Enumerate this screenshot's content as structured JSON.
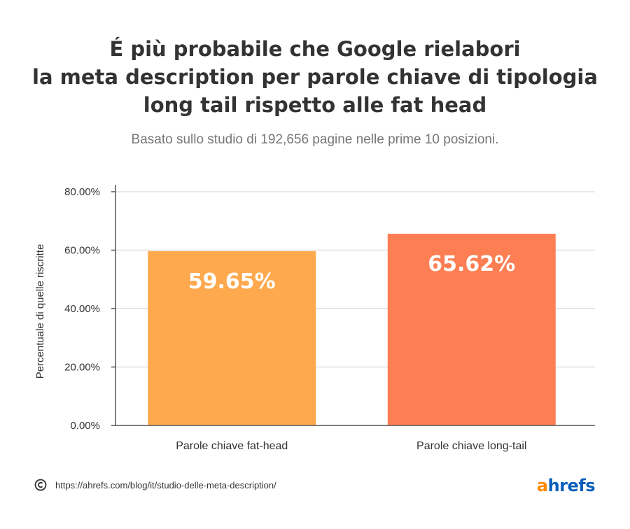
{
  "header": {
    "title_lines": [
      "É più probabile che Google rielabori",
      "la meta description per parole chiave di tipologia",
      "long tail rispetto alle fat head"
    ],
    "subtitle": "Basato sullo studio di 192,656 pagine nelle prime 10 posizioni."
  },
  "chart_data": {
    "type": "bar",
    "title": "É più probabile che Google rielabori la meta description per parole chiave di tipologia long tail rispetto alle fat head",
    "subtitle": "Basato sullo studio di 192,656 pagine nelle prime 10 posizioni.",
    "categories": [
      "Parole chiave fat-head",
      "Parole chiave long-tail"
    ],
    "values": [
      59.65,
      65.62
    ],
    "data_labels": [
      "59.65%",
      "65.62%"
    ],
    "bar_colors": [
      "#ffa94f",
      "#fd7e52"
    ],
    "xlabel": "",
    "ylabel": "Percentuale di quelle riscritte",
    "ylim": [
      0,
      80
    ],
    "yticks": [
      0,
      20,
      40,
      60,
      80
    ],
    "ytick_labels": [
      "0.00%",
      "20.00%",
      "40.00%",
      "60.00%",
      "80.00%"
    ],
    "grid": true
  },
  "footer": {
    "url": "https://ahrefs.com/blog/it/studio-delle-meta-description/",
    "logo_a": "a",
    "logo_rest": "hrefs"
  },
  "colors": {
    "text": "#333333",
    "subtitle": "#777777",
    "grid": "#e0e0e0",
    "axis": "#555555",
    "logo_orange": "#ff8800",
    "logo_blue": "#0a5ebb"
  }
}
